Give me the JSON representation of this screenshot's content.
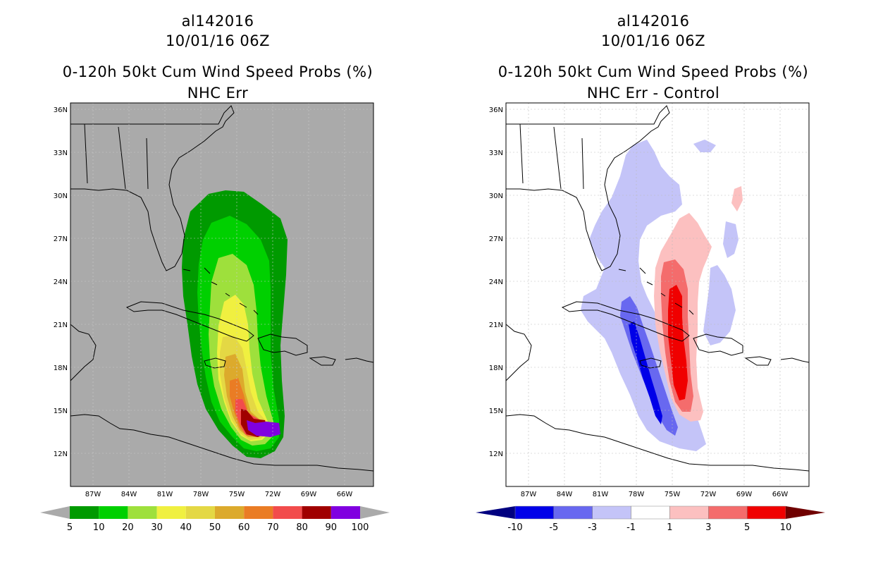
{
  "chart_data": [
    {
      "type": "contour-map",
      "storm_id": "al142016",
      "datetime": "10/01/16 06Z",
      "title": "0-120h 50kt Cum Wind Speed Probs (%)",
      "subtitle": "NHC Err",
      "lat_ticks": [
        "36N",
        "33N",
        "30N",
        "27N",
        "24N",
        "21N",
        "18N",
        "15N",
        "12N"
      ],
      "lon_ticks": [
        "87W",
        "84W",
        "81W",
        "78W",
        "75W",
        "72W",
        "69W",
        "66W"
      ],
      "colorbar": {
        "levels": [
          "5",
          "10",
          "20",
          "30",
          "40",
          "50",
          "60",
          "70",
          "80",
          "90",
          "100"
        ],
        "colors": [
          "#009a00",
          "#00d000",
          "#9ee03c",
          "#f0f040",
          "#e4d844",
          "#dcaa2c",
          "#ea7c24",
          "#f24c4c",
          "#a00000",
          "#8000e0"
        ],
        "below_color": "#aaaaaa",
        "above_color": "#aaaaaa"
      }
    },
    {
      "type": "contour-map",
      "storm_id": "al142016",
      "datetime": "10/01/16 06Z",
      "title": "0-120h 50kt Cum Wind Speed Probs (%)",
      "subtitle": "NHC Err - Control",
      "lat_ticks": [
        "36N",
        "33N",
        "30N",
        "27N",
        "24N",
        "21N",
        "18N",
        "15N",
        "12N"
      ],
      "lon_ticks": [
        "87W",
        "84W",
        "81W",
        "78W",
        "75W",
        "72W",
        "69W",
        "66W"
      ],
      "colorbar": {
        "levels": [
          "-10",
          "-5",
          "-3",
          "-1",
          "1",
          "3",
          "5",
          "10"
        ],
        "colors": [
          "#0000e8",
          "#6868f0",
          "#c4c4f8",
          "#ffffff",
          "#fcc0c0",
          "#f46c6c",
          "#f00000"
        ],
        "below_color": "#000080",
        "above_color": "#700000"
      }
    }
  ]
}
